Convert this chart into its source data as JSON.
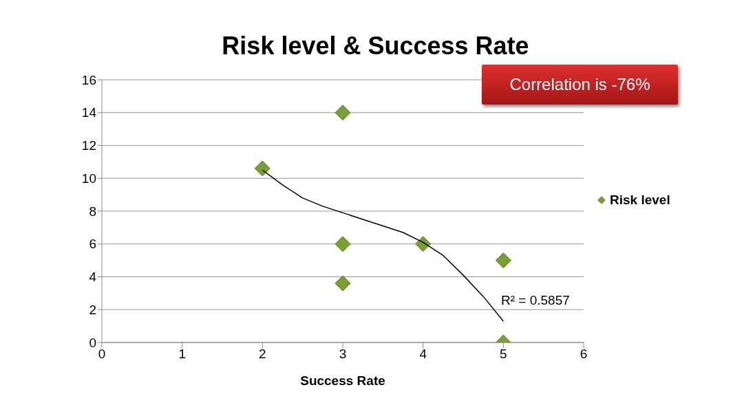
{
  "chart_data": {
    "type": "scatter",
    "title": "Risk level & Success Rate",
    "xlabel": "Success Rate",
    "xlim": [
      0,
      6
    ],
    "xticks": [
      0,
      1,
      2,
      3,
      4,
      5,
      6
    ],
    "ylim": [
      0,
      16
    ],
    "yticks": [
      0,
      2,
      4,
      6,
      8,
      10,
      12,
      14,
      16
    ],
    "grid": "y",
    "legend": "right",
    "series": [
      {
        "name": "Risk level",
        "color": "#77a033",
        "marker": "diamond",
        "x": [
          2,
          3,
          3,
          3,
          4,
          5,
          5
        ],
        "values": [
          10.6,
          14,
          6,
          3.6,
          6,
          5,
          0
        ]
      },
      {
        "type": "line",
        "color": "#000000",
        "marker": "none",
        "x": [
          2,
          2.25,
          2.5,
          2.75,
          3,
          3.25,
          3.5,
          3.75,
          4,
          4.25,
          4.5,
          4.75,
          5
        ],
        "values": [
          10.5,
          9.6,
          8.8,
          8.3,
          7.9,
          7.5,
          7.1,
          6.7,
          6.1,
          5.3,
          4.1,
          2.8,
          1.3
        ]
      }
    ],
    "annotations": [
      "Correlation is -76%",
      "R² = 0.5857"
    ]
  }
}
